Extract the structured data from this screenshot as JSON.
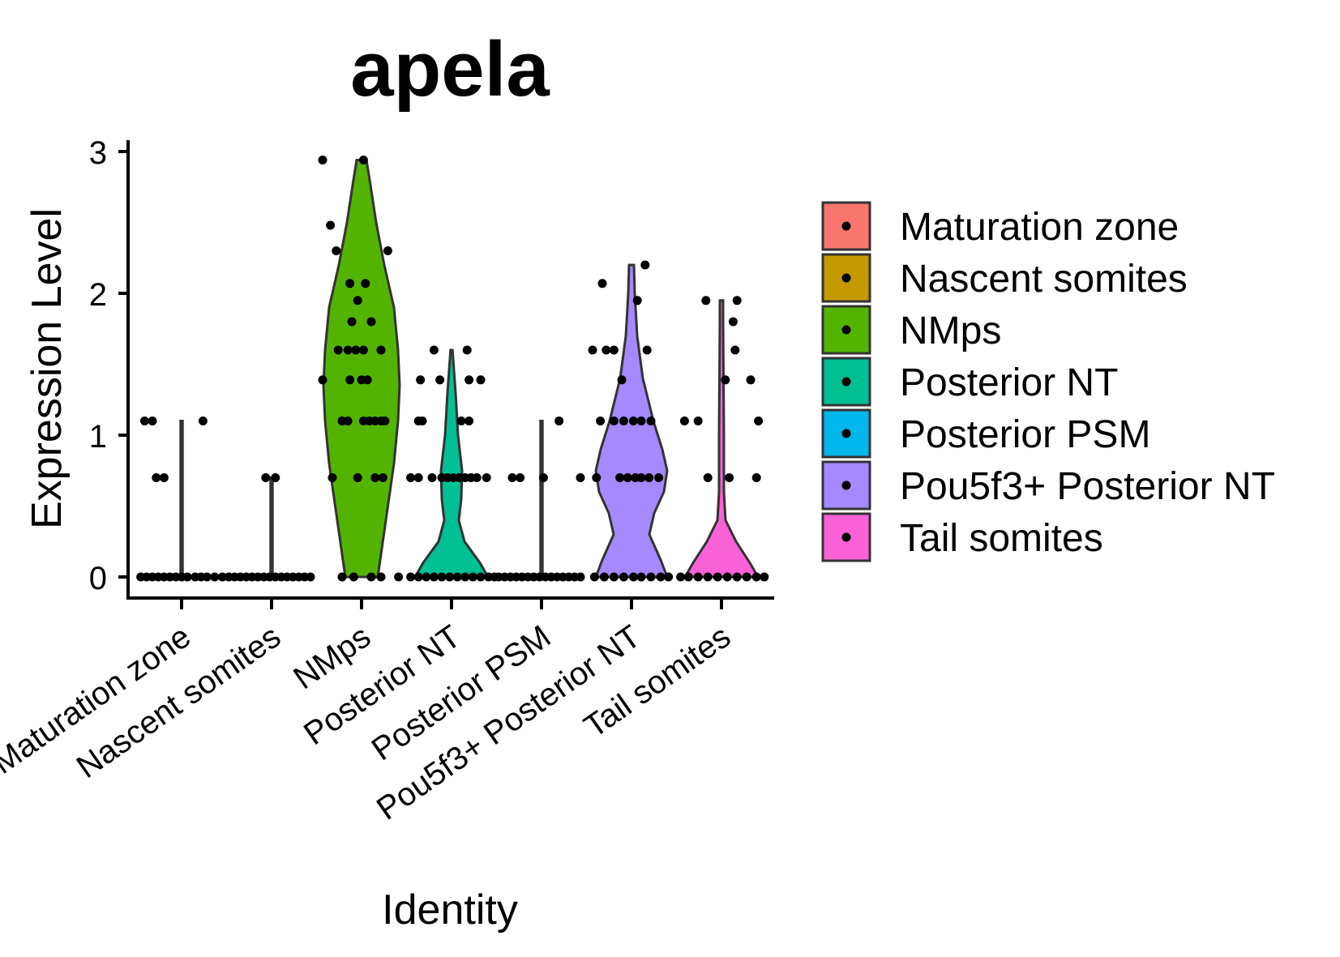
{
  "chart_data": {
    "type": "violin",
    "title": "apela",
    "xlabel": "Identity",
    "ylabel": "Expression Level",
    "ylim": [
      0,
      3
    ],
    "yticks": [
      0,
      1,
      2,
      3
    ],
    "legend_position": "right",
    "grid": false,
    "categories": [
      "Maturation zone",
      "Nascent somites",
      "NMps",
      "Posterior NT",
      "Posterior PSM",
      "Pou5f3+ Posterior NT",
      "Tail somites"
    ],
    "colors": [
      "#F8766D",
      "#C49A00",
      "#53B400",
      "#00C094",
      "#00B6EB",
      "#A58AFF",
      "#FB61D7"
    ],
    "series": [
      {
        "category": "Maturation zone",
        "violin": [
          [
            0,
            0.01
          ],
          [
            0.3,
            0.01
          ],
          [
            0.7,
            0.01
          ],
          [
            1.1,
            0.01
          ]
        ],
        "points": [
          [
            -0.38,
            1.1
          ],
          [
            -0.3,
            1.1
          ],
          [
            -0.26,
            0.7
          ],
          [
            -0.18,
            0.7
          ],
          [
            0.22,
            1.1
          ],
          [
            -0.42,
            0
          ],
          [
            -0.36,
            0
          ],
          [
            -0.3,
            0
          ],
          [
            -0.24,
            0
          ],
          [
            -0.18,
            0
          ],
          [
            -0.12,
            0
          ],
          [
            -0.06,
            0
          ],
          [
            0.0,
            0
          ],
          [
            0.06,
            0
          ],
          [
            0.14,
            0
          ],
          [
            0.2,
            0
          ],
          [
            0.26,
            0
          ],
          [
            0.34,
            0
          ],
          [
            0.42,
            0
          ]
        ]
      },
      {
        "category": "Nascent somites",
        "violin": [
          [
            0,
            0.01
          ],
          [
            0.35,
            0.01
          ],
          [
            0.7,
            0.01
          ]
        ],
        "points": [
          [
            -0.06,
            0.7
          ],
          [
            0.04,
            0.7
          ],
          [
            -0.44,
            0
          ],
          [
            -0.38,
            0
          ],
          [
            -0.32,
            0
          ],
          [
            -0.26,
            0
          ],
          [
            -0.2,
            0
          ],
          [
            -0.14,
            0
          ],
          [
            -0.08,
            0
          ],
          [
            -0.02,
            0
          ],
          [
            0.04,
            0
          ],
          [
            0.1,
            0
          ],
          [
            0.16,
            0
          ],
          [
            0.22,
            0
          ],
          [
            0.28,
            0
          ],
          [
            0.34,
            0
          ],
          [
            0.4,
            0
          ]
        ]
      },
      {
        "category": "NMps",
        "violin": [
          [
            0,
            0.2
          ],
          [
            0.4,
            0.3
          ],
          [
            0.8,
            0.4
          ],
          [
            1.1,
            0.45
          ],
          [
            1.35,
            0.47
          ],
          [
            1.6,
            0.45
          ],
          [
            1.9,
            0.4
          ],
          [
            2.2,
            0.28
          ],
          [
            2.5,
            0.18
          ],
          [
            2.8,
            0.1
          ],
          [
            2.94,
            0.06
          ]
        ],
        "points": [
          [
            -0.4,
            2.94
          ],
          [
            0.02,
            2.94
          ],
          [
            -0.32,
            2.48
          ],
          [
            -0.26,
            2.3
          ],
          [
            0.27,
            2.3
          ],
          [
            -0.12,
            2.07
          ],
          [
            0.04,
            2.07
          ],
          [
            -0.04,
            1.95
          ],
          [
            -0.1,
            1.8
          ],
          [
            0.1,
            1.8
          ],
          [
            -0.24,
            1.6
          ],
          [
            -0.14,
            1.6
          ],
          [
            -0.06,
            1.6
          ],
          [
            0.02,
            1.6
          ],
          [
            0.2,
            1.6
          ],
          [
            -0.4,
            1.39
          ],
          [
            -0.12,
            1.39
          ],
          [
            0.0,
            1.39
          ],
          [
            0.06,
            1.39
          ],
          [
            -0.2,
            1.1
          ],
          [
            -0.14,
            1.1
          ],
          [
            0.02,
            1.1
          ],
          [
            0.08,
            1.1
          ],
          [
            0.14,
            1.1
          ],
          [
            0.2,
            1.1
          ],
          [
            0.24,
            1.1
          ],
          [
            -0.3,
            0.7
          ],
          [
            -0.04,
            0.7
          ],
          [
            0.14,
            0.7
          ],
          [
            0.22,
            0.7
          ],
          [
            -0.2,
            0
          ],
          [
            -0.08,
            0
          ],
          [
            0.1,
            0
          ],
          [
            0.2,
            0
          ],
          [
            0.38,
            0
          ]
        ]
      },
      {
        "category": "Posterior NT",
        "violin": [
          [
            0,
            0.45
          ],
          [
            0.1,
            0.35
          ],
          [
            0.25,
            0.16
          ],
          [
            0.4,
            0.09
          ],
          [
            0.55,
            0.12
          ],
          [
            0.75,
            0.13
          ],
          [
            1.0,
            0.08
          ],
          [
            1.3,
            0.05
          ],
          [
            1.6,
            0.01
          ]
        ],
        "points": [
          [
            -0.18,
            1.6
          ],
          [
            0.16,
            1.6
          ],
          [
            -0.32,
            1.39
          ],
          [
            -0.12,
            1.39
          ],
          [
            0.18,
            1.39
          ],
          [
            0.3,
            1.39
          ],
          [
            -0.34,
            1.1
          ],
          [
            -0.3,
            1.1
          ],
          [
            0.1,
            1.1
          ],
          [
            0.18,
            1.1
          ],
          [
            -0.42,
            0.7
          ],
          [
            -0.34,
            0.7
          ],
          [
            -0.2,
            0.7
          ],
          [
            -0.1,
            0.7
          ],
          [
            -0.04,
            0.7
          ],
          [
            0.02,
            0.7
          ],
          [
            0.08,
            0.7
          ],
          [
            0.14,
            0.7
          ],
          [
            0.2,
            0.7
          ],
          [
            0.26,
            0.7
          ],
          [
            0.36,
            0.7
          ],
          [
            -0.42,
            0
          ],
          [
            -0.34,
            0
          ],
          [
            -0.26,
            0
          ],
          [
            -0.18,
            0
          ],
          [
            -0.1,
            0
          ],
          [
            -0.02,
            0
          ],
          [
            0.06,
            0
          ],
          [
            0.14,
            0
          ],
          [
            0.22,
            0
          ],
          [
            0.3,
            0
          ],
          [
            0.38,
            0
          ],
          [
            0.44,
            0
          ]
        ]
      },
      {
        "category": "Posterior PSM",
        "violin": [
          [
            0,
            0.01
          ],
          [
            0.4,
            0.01
          ],
          [
            0.8,
            0.01
          ],
          [
            1.1,
            0.01
          ]
        ],
        "points": [
          [
            -0.3,
            0.7
          ],
          [
            -0.22,
            0.7
          ],
          [
            0.02,
            0.7
          ],
          [
            0.4,
            0.7
          ],
          [
            0.18,
            1.1
          ],
          [
            -0.44,
            0
          ],
          [
            -0.38,
            0
          ],
          [
            -0.32,
            0
          ],
          [
            -0.26,
            0
          ],
          [
            -0.2,
            0
          ],
          [
            -0.14,
            0
          ],
          [
            -0.08,
            0
          ],
          [
            -0.02,
            0
          ],
          [
            0.04,
            0
          ],
          [
            0.1,
            0
          ],
          [
            0.16,
            0
          ],
          [
            0.22,
            0
          ],
          [
            0.28,
            0
          ],
          [
            0.34,
            0
          ],
          [
            0.4,
            0
          ]
        ]
      },
      {
        "category": "Pou5f3+ Posterior NT",
        "violin": [
          [
            0,
            0.44
          ],
          [
            0.12,
            0.36
          ],
          [
            0.3,
            0.22
          ],
          [
            0.45,
            0.28
          ],
          [
            0.6,
            0.4
          ],
          [
            0.75,
            0.44
          ],
          [
            0.9,
            0.38
          ],
          [
            1.1,
            0.27
          ],
          [
            1.4,
            0.14
          ],
          [
            1.7,
            0.07
          ],
          [
            2.0,
            0.04
          ],
          [
            2.2,
            0.03
          ]
        ],
        "points": [
          [
            -0.3,
            2.07
          ],
          [
            0.14,
            2.2
          ],
          [
            0.06,
            1.95
          ],
          [
            -0.4,
            1.6
          ],
          [
            -0.26,
            1.6
          ],
          [
            -0.18,
            1.6
          ],
          [
            0.16,
            1.6
          ],
          [
            -0.1,
            1.39
          ],
          [
            -0.32,
            1.1
          ],
          [
            -0.18,
            1.1
          ],
          [
            -0.08,
            1.1
          ],
          [
            0.02,
            1.1
          ],
          [
            0.1,
            1.1
          ],
          [
            0.2,
            1.1
          ],
          [
            -0.36,
            0.7
          ],
          [
            -0.12,
            0.7
          ],
          [
            -0.04,
            0.7
          ],
          [
            0.04,
            0.7
          ],
          [
            0.1,
            0.7
          ],
          [
            0.18,
            0.7
          ],
          [
            0.28,
            0.7
          ],
          [
            -0.38,
            0
          ],
          [
            -0.28,
            0
          ],
          [
            -0.18,
            0
          ],
          [
            -0.08,
            0
          ],
          [
            0.02,
            0
          ],
          [
            0.1,
            0
          ],
          [
            0.2,
            0
          ],
          [
            0.3,
            0
          ],
          [
            0.38,
            0
          ]
        ]
      },
      {
        "category": "Tail somites",
        "violin": [
          [
            0,
            0.45
          ],
          [
            0.1,
            0.35
          ],
          [
            0.25,
            0.18
          ],
          [
            0.4,
            0.05
          ],
          [
            0.6,
            0.03
          ],
          [
            1.0,
            0.03
          ],
          [
            1.4,
            0.025
          ],
          [
            1.8,
            0.02
          ],
          [
            1.95,
            0.02
          ]
        ],
        "points": [
          [
            -0.16,
            1.95
          ],
          [
            0.16,
            1.95
          ],
          [
            0.12,
            1.8
          ],
          [
            0.14,
            1.6
          ],
          [
            0.04,
            1.39
          ],
          [
            0.3,
            1.39
          ],
          [
            -0.38,
            1.1
          ],
          [
            -0.24,
            1.1
          ],
          [
            0.38,
            1.1
          ],
          [
            -0.14,
            0.7
          ],
          [
            0.08,
            0.7
          ],
          [
            0.36,
            0.7
          ],
          [
            -0.42,
            0
          ],
          [
            -0.34,
            0
          ],
          [
            -0.24,
            0
          ],
          [
            -0.14,
            0
          ],
          [
            -0.04,
            0
          ],
          [
            0.06,
            0
          ],
          [
            0.16,
            0
          ],
          [
            0.26,
            0
          ],
          [
            0.36,
            0
          ],
          [
            0.44,
            0
          ]
        ]
      }
    ]
  }
}
